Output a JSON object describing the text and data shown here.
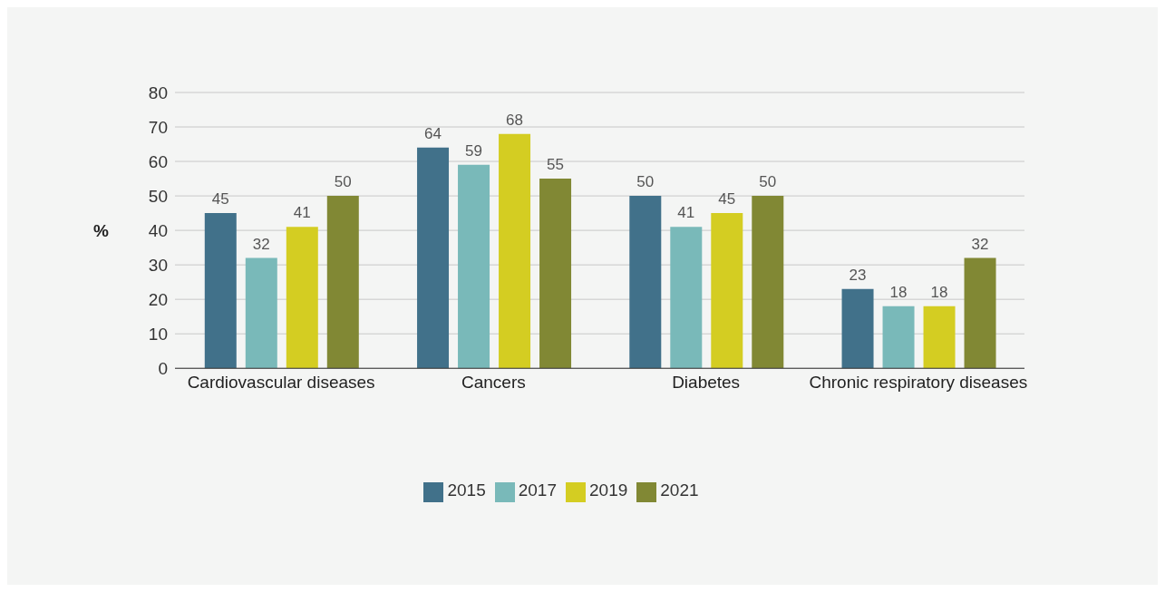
{
  "chart_data": {
    "type": "bar",
    "ylabel": "%",
    "categories": [
      "Cardiovascular diseases",
      "Cancers",
      "Diabetes",
      "Chronic respiratory diseases"
    ],
    "series": [
      {
        "name": "2015",
        "color": "#41718a",
        "values": [
          45,
          64,
          50,
          23
        ]
      },
      {
        "name": "2017",
        "color": "#79b9b9",
        "values": [
          32,
          59,
          41,
          18
        ]
      },
      {
        "name": "2019",
        "color": "#d4cd22",
        "values": [
          41,
          68,
          45,
          18
        ]
      },
      {
        "name": "2021",
        "color": "#818834",
        "values": [
          50,
          55,
          50,
          32
        ]
      }
    ],
    "ylim": [
      0,
      80
    ],
    "yticks": [
      0,
      10,
      20,
      30,
      40,
      50,
      60,
      70,
      80
    ],
    "grid": "y",
    "legend": "bottom",
    "data_labels": true
  }
}
